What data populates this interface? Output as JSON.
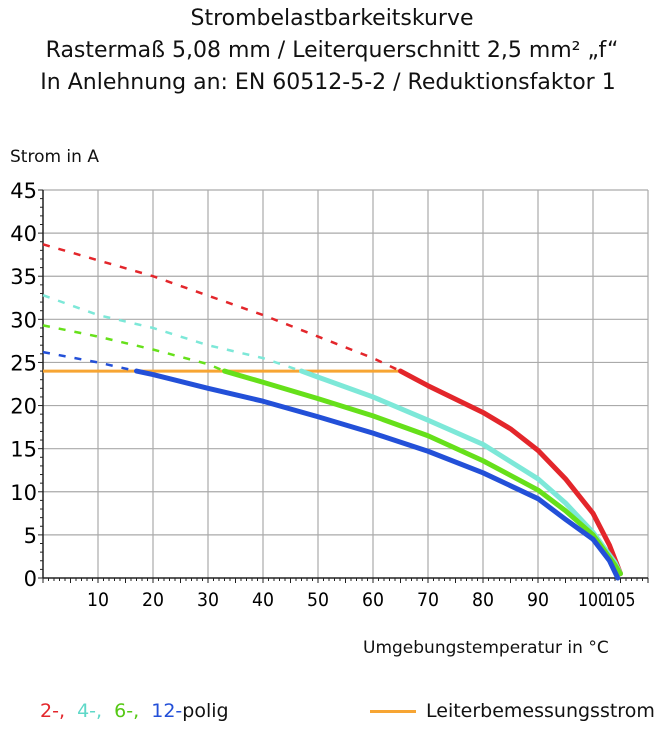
{
  "chart_data": {
    "type": "line",
    "title": [
      "Strombelastbarkeitskurve",
      "Rastermaß 5,08 mm / Leiterquerschnitt 2,5 mm² „f“",
      "In Anlehnung an: EN 60512-5-2 / Reduktionsfaktor 1"
    ],
    "ylabel": "Strom in A",
    "xlabel": "Umgebungstemperatur in °C",
    "xlim": [
      0,
      110
    ],
    "ylim": [
      0,
      45
    ],
    "xticks": [
      10,
      20,
      30,
      40,
      50,
      60,
      70,
      80,
      90,
      100,
      105
    ],
    "yticks": [
      0,
      5,
      10,
      15,
      20,
      25,
      30,
      35,
      40,
      45
    ],
    "grid": true,
    "series": [
      {
        "name": "2-,",
        "color": "#e3262b",
        "dashed": [
          [
            0,
            38.7
          ],
          [
            20,
            35
          ],
          [
            40,
            30.5
          ],
          [
            50,
            28
          ],
          [
            60,
            25.5
          ],
          [
            65,
            24
          ]
        ],
        "solid": [
          [
            65,
            24
          ],
          [
            70,
            22.3
          ],
          [
            80,
            19.2
          ],
          [
            85,
            17.3
          ],
          [
            90,
            14.8
          ],
          [
            95,
            11.5
          ],
          [
            100,
            7.5
          ],
          [
            103,
            3.8
          ],
          [
            105,
            0.5
          ]
        ]
      },
      {
        "name": "4-,",
        "color": "#7de8d8",
        "dashed": [
          [
            0,
            32.8
          ],
          [
            10,
            30.5
          ],
          [
            20,
            29
          ],
          [
            30,
            27
          ],
          [
            40,
            25.5
          ],
          [
            47,
            24
          ]
        ],
        "solid": [
          [
            47,
            24
          ],
          [
            50,
            23.3
          ],
          [
            60,
            21
          ],
          [
            70,
            18.3
          ],
          [
            80,
            15.5
          ],
          [
            90,
            11.5
          ],
          [
            95,
            8.7
          ],
          [
            100,
            5.3
          ],
          [
            104,
            1.8
          ],
          [
            105,
            0.5
          ]
        ]
      },
      {
        "name": "6-,",
        "color": "#66e01a",
        "dashed": [
          [
            0,
            29.3
          ],
          [
            10,
            28
          ],
          [
            20,
            26.5
          ],
          [
            30,
            24.8
          ],
          [
            33,
            24
          ]
        ],
        "solid": [
          [
            33,
            24
          ],
          [
            40,
            22.7
          ],
          [
            50,
            20.8
          ],
          [
            60,
            18.8
          ],
          [
            70,
            16.5
          ],
          [
            80,
            13.6
          ],
          [
            90,
            10.2
          ],
          [
            95,
            7.8
          ],
          [
            100,
            5
          ],
          [
            104,
            1.5
          ],
          [
            105,
            0.5
          ]
        ]
      },
      {
        "name": "12-",
        "color": "#2350d8",
        "dashed": [
          [
            0,
            26.2
          ],
          [
            10,
            25
          ],
          [
            17,
            24
          ]
        ],
        "solid": [
          [
            17,
            24
          ],
          [
            20,
            23.6
          ],
          [
            30,
            22
          ],
          [
            40,
            20.5
          ],
          [
            50,
            18.7
          ],
          [
            60,
            16.8
          ],
          [
            70,
            14.7
          ],
          [
            80,
            12.2
          ],
          [
            90,
            9.2
          ],
          [
            95,
            6.8
          ],
          [
            100,
            4.5
          ],
          [
            103,
            2
          ],
          [
            104.5,
            0
          ]
        ]
      }
    ],
    "reference_line": {
      "name": "Leiterbemessungsstrom",
      "color": "#f7a533",
      "y": 24,
      "x": [
        0,
        65
      ]
    },
    "legend_suffix": "polig"
  }
}
